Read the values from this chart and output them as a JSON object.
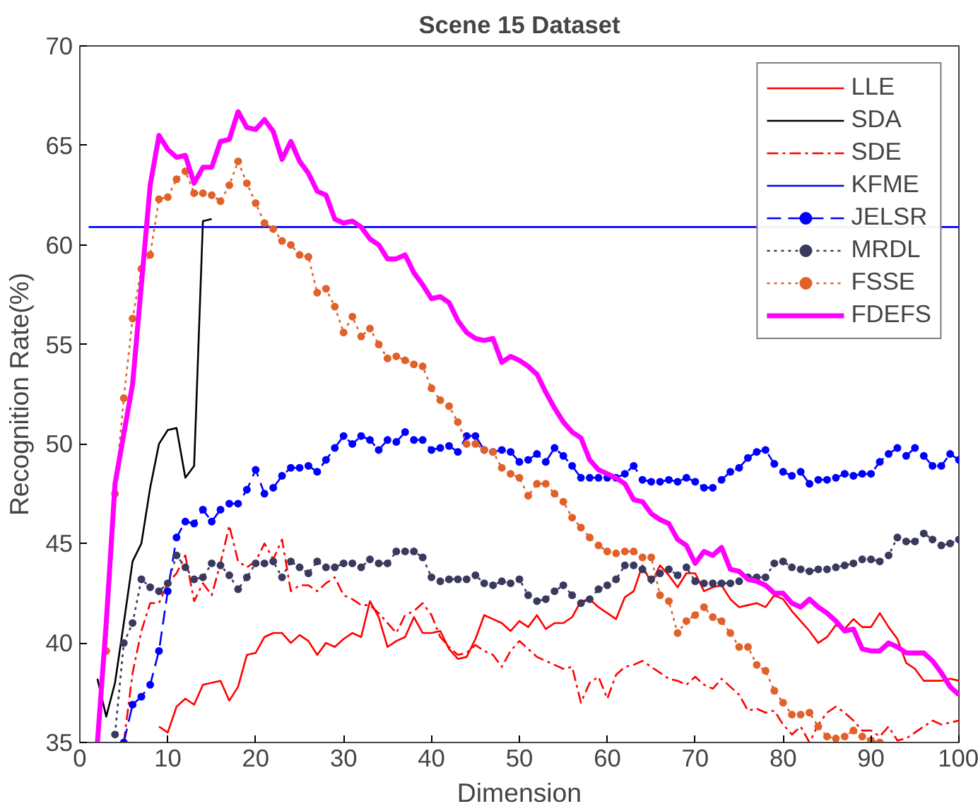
{
  "chart_data": {
    "type": "line",
    "title": "Scene 15 Dataset",
    "xlabel": "Dimension",
    "ylabel": "Recognition Rate(%)",
    "xlim": [
      0,
      100
    ],
    "ylim": [
      35,
      70
    ],
    "xticks": [
      0,
      10,
      20,
      30,
      40,
      50,
      60,
      70,
      80,
      90,
      100
    ],
    "yticks": [
      35,
      40,
      45,
      50,
      55,
      60,
      65,
      70
    ],
    "grid": false,
    "legend": "top right",
    "x": [
      2,
      3,
      4,
      5,
      6,
      7,
      8,
      9,
      10,
      11,
      12,
      13,
      14,
      15,
      16,
      17,
      18,
      19,
      20,
      21,
      22,
      23,
      24,
      25,
      26,
      27,
      28,
      29,
      30,
      31,
      32,
      33,
      34,
      35,
      36,
      37,
      38,
      39,
      40,
      41,
      42,
      43,
      44,
      45,
      46,
      47,
      48,
      49,
      50,
      51,
      52,
      53,
      54,
      55,
      56,
      57,
      58,
      59,
      60,
      61,
      62,
      63,
      64,
      65,
      66,
      67,
      68,
      69,
      70,
      71,
      72,
      73,
      74,
      75,
      76,
      77,
      78,
      79,
      80,
      81,
      82,
      83,
      84,
      85,
      86,
      87,
      88,
      89,
      90,
      91,
      92,
      93,
      94,
      95,
      96,
      97,
      98,
      99,
      100
    ],
    "series": [
      {
        "name": "LLE",
        "color": "#ff0000",
        "line_style": "solid",
        "marker": "none",
        "values": [
          null,
          null,
          null,
          null,
          null,
          null,
          null,
          35.8,
          35.5,
          36.8,
          37.2,
          36.9,
          37.9,
          38,
          38.1,
          37.1,
          37.8,
          39.4,
          39.5,
          40.3,
          40.5,
          40.5,
          40,
          40.4,
          40.1,
          39.4,
          40,
          39.8,
          40.2,
          40.5,
          40.3,
          42.1,
          41.3,
          39.8,
          40.1,
          40.3,
          41.3,
          40.5,
          40.5,
          40.6,
          39.7,
          39.2,
          39.3,
          40.2,
          41.4,
          41.2,
          41,
          40.6,
          41.1,
          40.8,
          41.4,
          40.7,
          41,
          41,
          41.3,
          42.1,
          42.2,
          41.8,
          41.5,
          41.2,
          42.3,
          42.6,
          43.9,
          43,
          43.9,
          43.4,
          42.8,
          43.5,
          43.5,
          42.6,
          42.8,
          42.9,
          42.2,
          41.8,
          41.9,
          42,
          41.8,
          42.4,
          42.2,
          41.6,
          41.1,
          40.6,
          40,
          40.3,
          40.9,
          40.7,
          41.2,
          40.8,
          40.8,
          41.5,
          40.8,
          40.2,
          39,
          38.7,
          38.1,
          38.1,
          38.1,
          38.2,
          38.1
        ]
      },
      {
        "name": "SDA",
        "color": "#000000",
        "line_style": "solid",
        "marker": "none",
        "values": [
          38.2,
          36.3,
          38,
          41,
          44.1,
          45,
          47.8,
          50,
          50.7,
          50.8,
          48.3,
          48.9,
          61.2,
          61.3,
          null,
          null,
          null,
          null,
          null,
          null,
          null,
          null,
          null,
          null,
          null,
          null,
          null,
          null,
          null,
          null,
          null,
          null,
          null,
          null,
          null,
          null,
          null,
          null,
          null,
          null,
          null,
          null,
          null,
          null,
          null,
          null,
          null,
          null,
          null,
          null,
          null,
          null,
          null,
          null,
          null,
          null,
          null,
          null,
          null,
          null,
          null,
          null,
          null,
          null,
          null,
          null,
          null,
          null,
          null,
          null,
          null,
          null,
          null,
          null,
          null,
          null,
          null,
          null,
          null,
          null,
          null,
          null,
          null,
          null,
          null,
          null,
          null,
          null,
          null,
          null,
          null,
          null,
          null,
          null,
          null,
          null,
          null,
          null,
          null
        ]
      },
      {
        "name": "SDE",
        "color": "#ff0000",
        "line_style": "dashdot",
        "marker": "none",
        "values": [
          null,
          null,
          null,
          35,
          38.5,
          40.6,
          42,
          42,
          43,
          43.5,
          44.4,
          42.1,
          43,
          42.4,
          44,
          45.9,
          44.1,
          43.8,
          44.1,
          45,
          44.2,
          45.2,
          42.6,
          42.9,
          42.9,
          42.6,
          43,
          43.3,
          42.4,
          42.2,
          41.9,
          41.9,
          41.5,
          41,
          40.5,
          41.4,
          41.6,
          42,
          41.4,
          40.3,
          39.8,
          39.4,
          39.5,
          39.9,
          39.6,
          39.4,
          38.8,
          39.6,
          40.1,
          39.7,
          39.3,
          39.1,
          38.9,
          38.7,
          38.8,
          37,
          38,
          38.3,
          37.2,
          38.4,
          38.8,
          38.9,
          39.1,
          38.8,
          38.5,
          38.2,
          38.1,
          37.9,
          38.3,
          37.9,
          37.7,
          38.2,
          37.8,
          37.4,
          36.6,
          36.7,
          36.5,
          36.6,
          35.9,
          35.4,
          35.8,
          35,
          35.9,
          36.5,
          36.8,
          36.5,
          36.1,
          35.6,
          35.6,
          35.3,
          35.8,
          35.1,
          35.2,
          35.5,
          35.8,
          36.1,
          35.9,
          36,
          36.1
        ]
      },
      {
        "name": "KFME",
        "color": "#0000ff",
        "line_style": "solid",
        "marker": "none",
        "x": [
          1,
          100
        ],
        "values": [
          60.9,
          60.9
        ]
      },
      {
        "name": "JELSR",
        "color": "#0000ff",
        "line_style": "dashed",
        "marker": "circle",
        "values": [
          null,
          null,
          null,
          35,
          36.9,
          37.3,
          37.9,
          39.6,
          42.6,
          45.3,
          46.1,
          46,
          46.7,
          46.1,
          46.7,
          47,
          47,
          47.7,
          48.7,
          47.5,
          47.8,
          48.4,
          48.8,
          48.8,
          48.9,
          48.6,
          49.2,
          49.8,
          50.4,
          50,
          50.4,
          50.2,
          49.7,
          50.2,
          50.1,
          50.6,
          50.2,
          50.2,
          49.7,
          49.8,
          49.9,
          49.6,
          50.4,
          50.4,
          49.7,
          49.6,
          49.7,
          49.6,
          49.1,
          49.2,
          49.5,
          49.1,
          49.8,
          49.4,
          48.9,
          48.3,
          48.3,
          48.3,
          48.3,
          48.3,
          48.5,
          48.9,
          48.2,
          48.1,
          48.1,
          48.2,
          48.1,
          48.3,
          48.1,
          47.8,
          47.8,
          48.2,
          48.6,
          48.8,
          49.3,
          49.6,
          49.7,
          49,
          48.6,
          48.4,
          48.6,
          48,
          48.2,
          48.2,
          48.3,
          48.5,
          48.4,
          48.5,
          48.5,
          49.1,
          49.5,
          49.8,
          49.4,
          49.8,
          49.4,
          48.9,
          48.9,
          49.5,
          49.2
        ]
      },
      {
        "name": "MRDL",
        "color": "#3a3a5e",
        "line_style": "dotted",
        "marker": "circle",
        "values": [
          null,
          null,
          35.4,
          40,
          41,
          43.2,
          42.8,
          42.6,
          43,
          44.4,
          43.8,
          43.2,
          43.3,
          44,
          43.9,
          43.4,
          42.7,
          43.3,
          44,
          44,
          44.1,
          43.3,
          44.1,
          43.8,
          43.5,
          44.1,
          43.8,
          43.8,
          44,
          44,
          43.8,
          44.2,
          44,
          44,
          44.6,
          44.6,
          44.6,
          44.3,
          43.3,
          43.1,
          43.2,
          43.2,
          43.2,
          43.4,
          43,
          42.9,
          43.1,
          43,
          43.2,
          42.4,
          42.1,
          42.2,
          42.6,
          42.9,
          42.4,
          42,
          42.2,
          42.7,
          42.9,
          43.2,
          43.9,
          43.9,
          43.7,
          43.2,
          43.5,
          43.7,
          43.4,
          43.8,
          43.1,
          43,
          43,
          43,
          43,
          43.1,
          43.3,
          43.3,
          43.3,
          44,
          44.1,
          43.8,
          43.7,
          43.6,
          43.7,
          43.7,
          43.8,
          43.9,
          44,
          44.2,
          44.2,
          44.1,
          44.4,
          45.3,
          45.1,
          45.1,
          45.5,
          45.2,
          44.9,
          45,
          45.2
        ]
      },
      {
        "name": "FSSE",
        "color": "#e0622a",
        "line_style": "dotted",
        "marker": "circle",
        "values": [
          null,
          39.6,
          47.5,
          52.3,
          56.3,
          58.8,
          59.5,
          62.3,
          62.4,
          63.3,
          63.7,
          62.6,
          62.6,
          62.5,
          62.2,
          63,
          64.2,
          63.1,
          62.1,
          61.1,
          60.8,
          60.2,
          60,
          59.5,
          59.4,
          57.6,
          57.8,
          56.9,
          55.6,
          56.4,
          55.4,
          55.8,
          55,
          54.3,
          54.4,
          54.2,
          54,
          53.9,
          52.8,
          52.2,
          51.9,
          51.1,
          50,
          50,
          49.7,
          49.6,
          48.8,
          48.5,
          48.3,
          47.4,
          48,
          48,
          47.5,
          47.1,
          46.3,
          45.8,
          45.3,
          44.9,
          44.6,
          44.5,
          44.6,
          44.6,
          44.3,
          44.3,
          42.4,
          42.1,
          40.5,
          41.1,
          41.4,
          41.8,
          41.3,
          41.1,
          40.5,
          39.8,
          39.8,
          38.9,
          38.6,
          37.6,
          37,
          36.4,
          36.4,
          36.5,
          35.8,
          35.3,
          35.2,
          35.3,
          35.6,
          35.3,
          35.1,
          35,
          null,
          null,
          null,
          null,
          null,
          null,
          null,
          null,
          null
        ]
      },
      {
        "name": "FDEFS",
        "color": "#ff00ff",
        "line_style": "solid",
        "marker": "none",
        "values": [
          35,
          41,
          48,
          50.5,
          53,
          58,
          63,
          65.5,
          64.8,
          64.4,
          64.5,
          63.1,
          63.9,
          63.9,
          65.2,
          65.3,
          66.7,
          65.9,
          65.8,
          66.3,
          65.7,
          64.3,
          65.2,
          64.2,
          63.6,
          62.7,
          62.5,
          61.3,
          61.1,
          61.2,
          60.9,
          60.3,
          60,
          59.3,
          59.3,
          59.5,
          58.6,
          58,
          57.3,
          57.4,
          57.1,
          56.2,
          55.6,
          55.3,
          55.2,
          55.3,
          54.1,
          54.4,
          54.2,
          53.9,
          53.5,
          52.6,
          51.8,
          51.1,
          50.6,
          50.3,
          49.2,
          48.7,
          48.5,
          48.3,
          48,
          47.2,
          47.1,
          46.5,
          46.2,
          46,
          45.2,
          44.9,
          44,
          44.6,
          44.4,
          44.8,
          43.7,
          43.6,
          43.2,
          43.1,
          42.9,
          42.5,
          42.5,
          42,
          41.8,
          42.2,
          41.8,
          41.5,
          41.1,
          40.6,
          40.7,
          39.7,
          39.6,
          39.6,
          40,
          39.8,
          39.5,
          39.5,
          39.5,
          39.1,
          38.5,
          37.8,
          37.4
        ]
      }
    ]
  }
}
